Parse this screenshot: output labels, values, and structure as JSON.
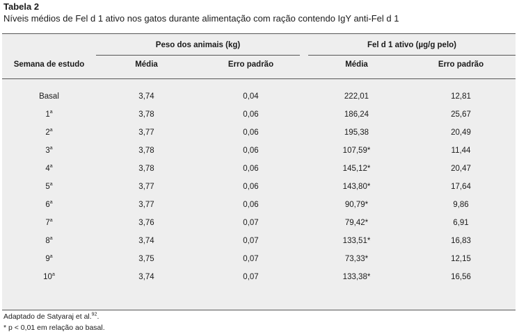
{
  "title": "Tabela 2",
  "subtitle": "Níveis médios de Fel d 1 ativo nos gatos durante alimentação com ração contendo IgY anti-Fel d 1",
  "headers": {
    "week": "Semana de estudo",
    "group_weight": "Peso dos animais (kg)",
    "group_fel": "Fel d 1 ativo (µg/g pelo)",
    "mean": "Média",
    "std_error": "Erro padrão"
  },
  "rows": [
    {
      "week": "Basal",
      "sup": "",
      "w_mean": "3,74",
      "w_err": "0,04",
      "f_mean": "222,01",
      "f_err": "12,81"
    },
    {
      "week": "1",
      "sup": "a",
      "w_mean": "3,78",
      "w_err": "0,06",
      "f_mean": "186,24",
      "f_err": "25,67"
    },
    {
      "week": "2",
      "sup": "a",
      "w_mean": "3,77",
      "w_err": "0,06",
      "f_mean": "195,38",
      "f_err": "20,49"
    },
    {
      "week": "3",
      "sup": "a",
      "w_mean": "3,78",
      "w_err": "0,06",
      "f_mean": "107,59*",
      "f_err": "11,44"
    },
    {
      "week": "4",
      "sup": "a",
      "w_mean": "3,78",
      "w_err": "0,06",
      "f_mean": "145,12*",
      "f_err": "20,47"
    },
    {
      "week": "5",
      "sup": "a",
      "w_mean": "3,77",
      "w_err": "0,06",
      "f_mean": "143,80*",
      "f_err": "17,64"
    },
    {
      "week": "6",
      "sup": "a",
      "w_mean": "3,77",
      "w_err": "0,06",
      "f_mean": "90,79*",
      "f_err": "9,86"
    },
    {
      "week": "7",
      "sup": "a",
      "w_mean": "3,76",
      "w_err": "0,07",
      "f_mean": "79,42*",
      "f_err": "6,91"
    },
    {
      "week": "8",
      "sup": "a",
      "w_mean": "3,74",
      "w_err": "0,07",
      "f_mean": "133,51*",
      "f_err": "16,83"
    },
    {
      "week": "9",
      "sup": "a",
      "w_mean": "3,75",
      "w_err": "0,07",
      "f_mean": "73,33*",
      "f_err": "12,15"
    },
    {
      "week": "10",
      "sup": "a",
      "w_mean": "3,74",
      "w_err": "0,07",
      "f_mean": "133,38*",
      "f_err": "16,56"
    }
  ],
  "footnotes": {
    "source": "Adaptado de Satyaraj et al.",
    "source_ref": "92",
    "source_end": ".",
    "significance": "* p < 0,01 em relação ao basal."
  }
}
